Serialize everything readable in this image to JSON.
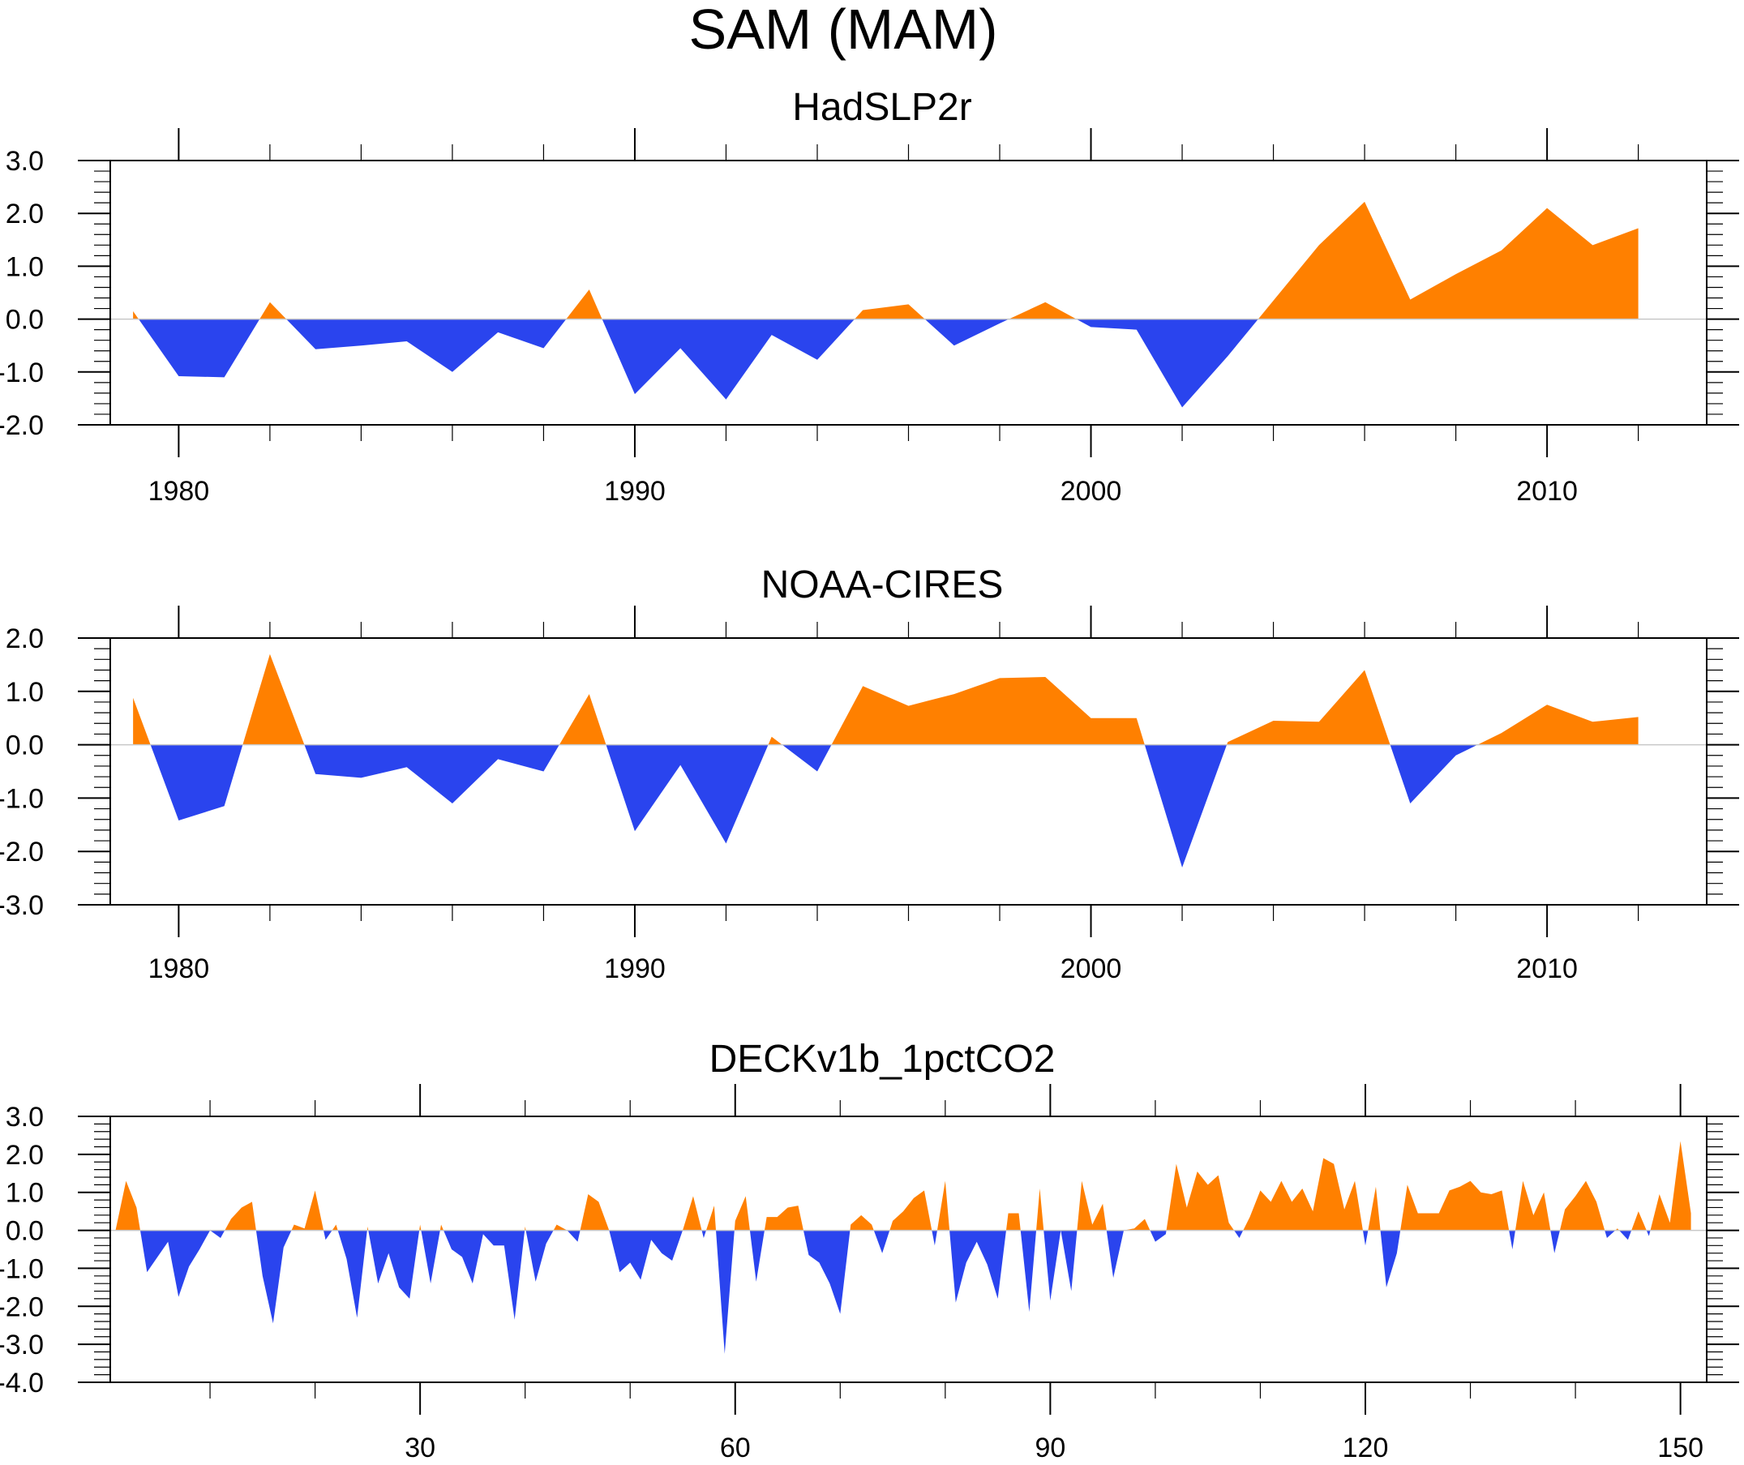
{
  "title": "SAM (MAM)",
  "colors": {
    "positive": "#ff8000",
    "negative": "#2a44ee",
    "frame": "#000000",
    "zero_line": "#c8c8c8"
  },
  "chart_data": [
    {
      "type": "area",
      "title": "HadSLP2r",
      "x_ticks": [
        1980,
        1990,
        2000,
        2010
      ],
      "xlim": [
        1978.5,
        2013.5
      ],
      "y_ticks": [
        "3.0",
        "2.0",
        "1.0",
        "0.0",
        "-1.0",
        "-2.0"
      ],
      "ylim": [
        -2,
        3
      ],
      "x": [
        1979,
        1980,
        1981,
        1982,
        1983,
        1984,
        1985,
        1986,
        1987,
        1988,
        1989,
        1990,
        1991,
        1992,
        1993,
        1994,
        1995,
        1996,
        1997,
        1998,
        1999,
        2000,
        2001,
        2002,
        2003,
        2004,
        2005,
        2006,
        2007,
        2008,
        2009,
        2010,
        2011,
        2012
      ],
      "values": [
        0.15,
        -1.08,
        -1.1,
        0.32,
        -0.57,
        -0.5,
        -0.42,
        -1.0,
        -0.25,
        -0.55,
        0.56,
        -1.42,
        -0.55,
        -1.52,
        -0.3,
        -0.77,
        0.17,
        0.28,
        -0.5,
        -0.08,
        0.32,
        -0.15,
        -0.2,
        -1.67,
        -0.7,
        0.35,
        1.4,
        2.22,
        0.37,
        0.85,
        1.3,
        2.1,
        1.4,
        1.72
      ]
    },
    {
      "type": "area",
      "title": "NOAA-CIRES",
      "x_ticks": [
        1980,
        1990,
        2000,
        2010
      ],
      "xlim": [
        1978.5,
        2013.5
      ],
      "y_ticks": [
        "2.0",
        "1.0",
        "0.0",
        "-1.0",
        "-2.0",
        "-3.0"
      ],
      "ylim": [
        -3,
        2
      ],
      "x": [
        1979,
        1980,
        1981,
        1982,
        1983,
        1984,
        1985,
        1986,
        1987,
        1988,
        1989,
        1990,
        1991,
        1992,
        1993,
        1994,
        1995,
        1996,
        1997,
        1998,
        1999,
        2000,
        2001,
        2002,
        2003,
        2004,
        2005,
        2006,
        2007,
        2008,
        2009,
        2010,
        2011,
        2012
      ],
      "values": [
        0.88,
        -1.42,
        -1.15,
        1.7,
        -0.55,
        -0.62,
        -0.42,
        -1.1,
        -0.27,
        -0.5,
        0.95,
        -1.62,
        -0.38,
        -1.85,
        0.15,
        -0.5,
        1.1,
        0.73,
        0.95,
        1.25,
        1.27,
        0.5,
        0.5,
        -2.3,
        0.05,
        0.45,
        0.43,
        1.4,
        -1.1,
        -0.2,
        0.22,
        0.75,
        0.43,
        0.52
      ]
    },
    {
      "type": "area",
      "title": "DECKv1b_1pctCO2",
      "x_ticks": [
        30,
        60,
        90,
        120,
        150
      ],
      "xlim": [
        0.5,
        152.5
      ],
      "y_ticks": [
        "3.0",
        "2.0",
        "1.0",
        "0.0",
        "-1.0",
        "-2.0",
        "-3.0",
        "-4.0"
      ],
      "ylim": [
        -4,
        3
      ],
      "x_start": 1,
      "values": [
        0.0,
        1.3,
        0.6,
        -1.1,
        -0.7,
        -0.3,
        -1.75,
        -0.95,
        -0.5,
        0.0,
        -0.2,
        0.3,
        0.6,
        0.75,
        -1.2,
        -2.45,
        -0.45,
        0.15,
        0.05,
        1.05,
        -0.25,
        0.15,
        -0.75,
        -2.3,
        0.1,
        -1.4,
        -0.6,
        -1.5,
        -1.8,
        0.15,
        -1.4,
        0.15,
        -0.5,
        -0.7,
        -1.4,
        -0.1,
        -0.4,
        -0.4,
        -2.35,
        0.1,
        -1.35,
        -0.35,
        0.15,
        0.0,
        -0.3,
        0.95,
        0.75,
        0.0,
        -1.1,
        -0.85,
        -1.3,
        -0.25,
        -0.6,
        -0.8,
        0.0,
        0.9,
        -0.2,
        0.65,
        -3.25,
        0.25,
        0.9,
        -1.35,
        0.35,
        0.35,
        0.6,
        0.65,
        -0.65,
        -0.85,
        -1.4,
        -2.2,
        0.15,
        0.4,
        0.15,
        -0.6,
        0.25,
        0.5,
        0.85,
        1.05,
        -0.4,
        1.3,
        -1.9,
        -0.85,
        -0.3,
        -0.9,
        -1.8,
        0.45,
        0.45,
        -2.15,
        1.1,
        -1.85,
        0.0,
        -1.6,
        1.3,
        0.15,
        0.7,
        -1.25,
        0.0,
        0.05,
        0.3,
        -0.3,
        -0.1,
        1.75,
        0.6,
        1.55,
        1.2,
        1.45,
        0.2,
        -0.2,
        0.35,
        1.05,
        0.75,
        1.3,
        0.75,
        1.1,
        0.5,
        1.9,
        1.75,
        0.55,
        1.3,
        -0.4,
        1.15,
        -1.5,
        -0.6,
        1.2,
        0.45,
        0.45,
        0.45,
        1.05,
        1.15,
        1.3,
        1.0,
        0.95,
        1.05,
        -0.5,
        1.3,
        0.4,
        1.0,
        -0.6,
        0.55,
        0.9,
        1.3,
        0.75,
        -0.2,
        0.05,
        -0.25,
        0.5,
        -0.15,
        0.95,
        0.2,
        2.35,
        0.45
      ]
    }
  ]
}
